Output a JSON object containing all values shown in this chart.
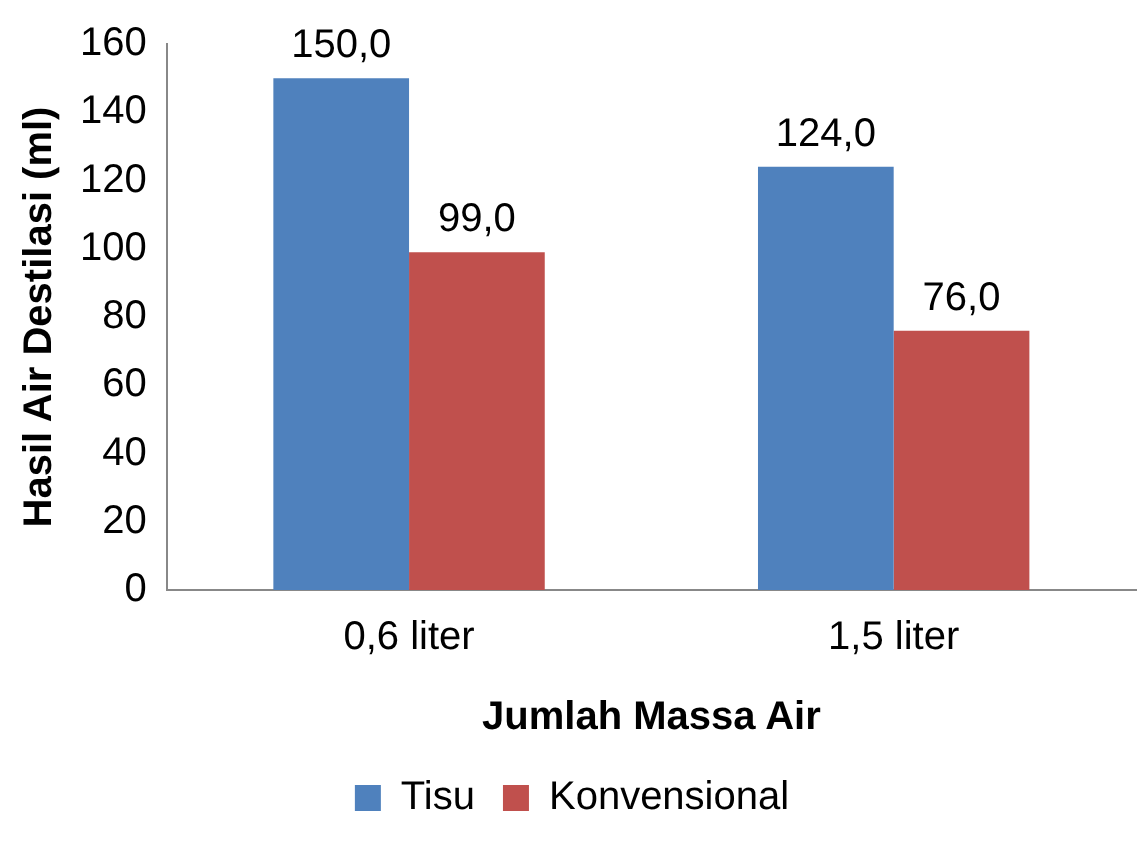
{
  "chart_data": {
    "type": "bar",
    "xlabel": "Jumlah Massa Air",
    "ylabel": "Hasil Air Destilasi (ml)",
    "categories": [
      "0,6 liter",
      "1,5 liter"
    ],
    "series": [
      {
        "name": "Tisu",
        "color": "#4f81bd",
        "values": [
          150,
          124
        ],
        "value_labels": [
          "150,0",
          "124,0"
        ]
      },
      {
        "name": "Konvensional",
        "color": "#c0504d",
        "values": [
          99,
          76
        ],
        "value_labels": [
          "99,0",
          "76,0"
        ]
      }
    ],
    "ylim": [
      0,
      160
    ],
    "yticks": [
      0,
      20,
      40,
      60,
      80,
      100,
      120,
      140,
      160
    ],
    "grid": false,
    "legend": "bottom"
  }
}
